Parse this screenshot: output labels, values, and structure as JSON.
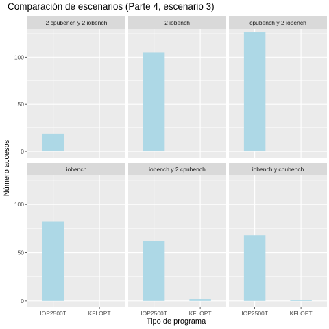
{
  "chart_data": {
    "type": "bar",
    "title": "Comparación de escenarios (Parte 4, escenario 3)",
    "xlabel": "Tipo de programa",
    "ylabel": "Número accesos",
    "categories": [
      "IOP2500T",
      "KFLOPT"
    ],
    "ylim": [
      0,
      130
    ],
    "yticks": [
      0,
      50,
      100
    ],
    "bar_color": "#add8e6",
    "panel_background": "#ebebeb",
    "strip_background": "#d9d9d9",
    "grid": true,
    "facets": [
      {
        "label": "2 cpubench y 2 iobench",
        "values": [
          19,
          0
        ]
      },
      {
        "label": "2 iobench",
        "values": [
          105,
          0
        ]
      },
      {
        "label": "cpubench y 2 iobench",
        "values": [
          127,
          0
        ]
      },
      {
        "label": "iobench",
        "values": [
          82,
          0
        ]
      },
      {
        "label": "iobench y 2 cpubench",
        "values": [
          62,
          2
        ]
      },
      {
        "label": "iobench y cpubench",
        "values": [
          68,
          1
        ]
      }
    ]
  }
}
